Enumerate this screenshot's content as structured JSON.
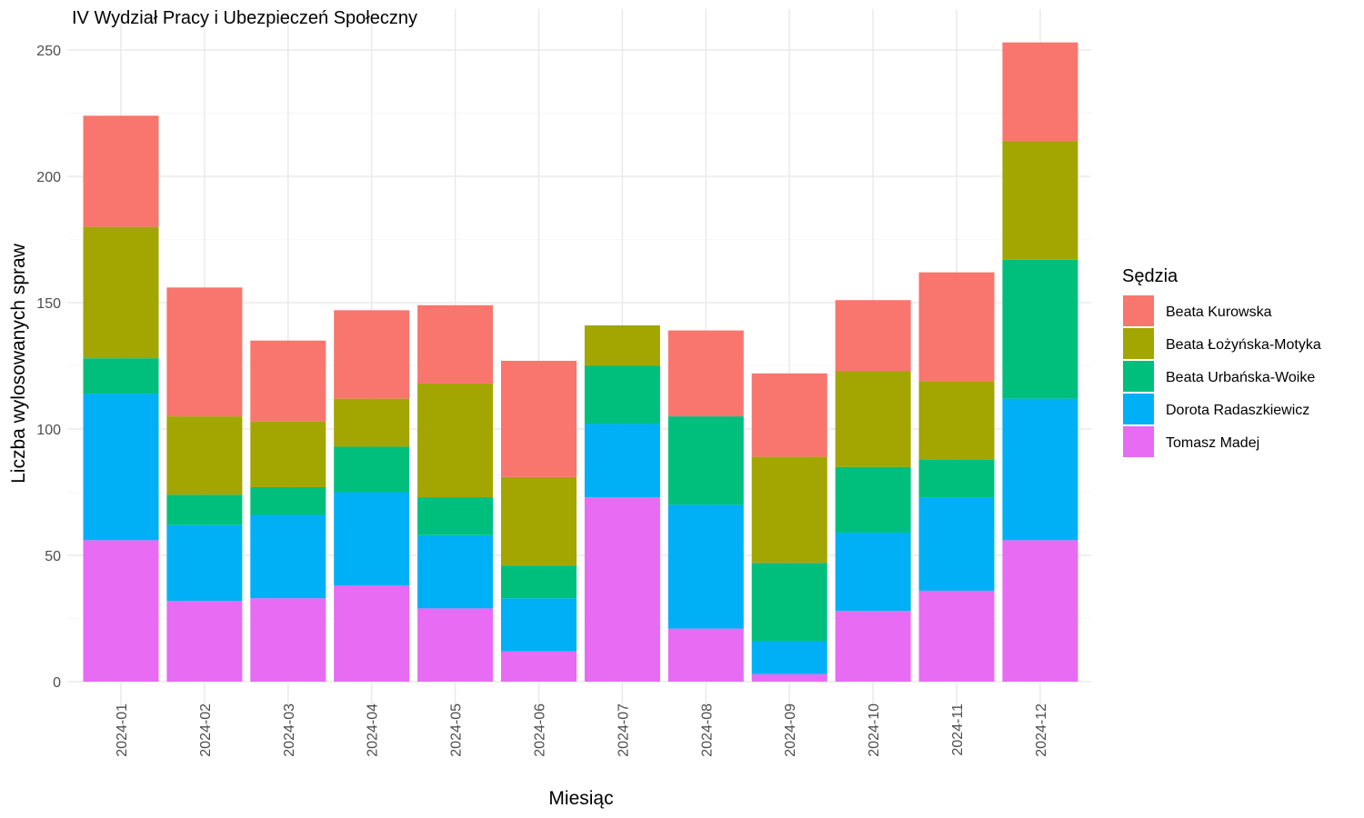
{
  "chart_data": {
    "type": "bar",
    "stacked": true,
    "title": "IV Wydział Pracy i Ubezpieczeń Społeczny",
    "xlabel": "Miesiąc",
    "ylabel": "Liczba wylosowanych spraw",
    "ylim": [
      0,
      260
    ],
    "yticks": [
      0,
      50,
      100,
      150,
      200,
      250
    ],
    "grid": true,
    "legend": {
      "title": "Sędzia",
      "position": "right"
    },
    "categories": [
      "2024-01",
      "2024-02",
      "2024-03",
      "2024-04",
      "2024-05",
      "2024-06",
      "2024-07",
      "2024-08",
      "2024-09",
      "2024-10",
      "2024-11",
      "2024-12"
    ],
    "series": [
      {
        "name": "Beata Kurowska",
        "color": "#F8766D",
        "values": [
          44,
          51,
          32,
          35,
          31,
          46,
          0,
          34,
          33,
          28,
          43,
          39
        ]
      },
      {
        "name": "Beata Łożyńska-Motyka",
        "color": "#A3A500",
        "values": [
          52,
          31,
          26,
          19,
          45,
          35,
          16,
          0,
          42,
          38,
          31,
          47
        ]
      },
      {
        "name": "Beata Urbańska-Woike",
        "color": "#00BF7D",
        "values": [
          14,
          12,
          11,
          18,
          15,
          13,
          23,
          35,
          31,
          26,
          15,
          55
        ]
      },
      {
        "name": "Dorota Radaszkiewicz",
        "color": "#00B0F6",
        "values": [
          58,
          30,
          33,
          37,
          29,
          21,
          29,
          49,
          13,
          31,
          37,
          56
        ]
      },
      {
        "name": "Tomasz Madej",
        "color": "#E76BF3",
        "values": [
          56,
          32,
          33,
          38,
          29,
          12,
          73,
          21,
          3,
          28,
          36,
          56
        ]
      }
    ]
  }
}
